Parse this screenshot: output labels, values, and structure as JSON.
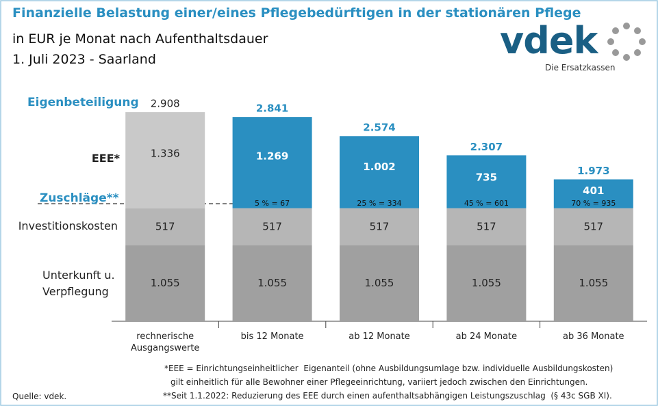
{
  "title": "Finanzielle Belastung einer/eines Pflegebedürftigen in der stationären Pflege",
  "subtitle": "in EUR je Monat nach Aufenthaltsdauer",
  "date": "1. Juli 2023 - Saarland",
  "logo": {
    "name": "vdek",
    "tagline": "Die Ersatzkassen"
  },
  "chart_data": {
    "type": "stacked_bar",
    "categories": [
      "rechnerische Ausgangswerte",
      "bis 12 Monate",
      "ab 12 Monate",
      "ab 24 Monate",
      "ab 36 Monate"
    ],
    "series": [
      {
        "name": "Unterkunft u. Verpflegung",
        "color": "#a0a0a0",
        "values": [
          1055,
          1055,
          1055,
          1055,
          1055
        ],
        "value_labels": [
          "1.055",
          "1.055",
          "1.055",
          "1.055",
          "1.055"
        ]
      },
      {
        "name": "Investitionskosten",
        "color": "#b6b6b6",
        "values": [
          517,
          517,
          517,
          517,
          517
        ]
      },
      {
        "name": "EEE*",
        "colors": [
          "#c9c9c9",
          "#2a8fc1",
          "#2a8fc1",
          "#2a8fc1",
          "#2a8fc1"
        ],
        "values": [
          1336,
          1269,
          1002,
          735,
          401
        ],
        "value_labels": [
          "1.336",
          "1.269",
          "1.002",
          "735",
          "401"
        ]
      }
    ],
    "totals": {
      "name": "Eigenbeteiligung",
      "values": [
        2908,
        2841,
        2574,
        2307,
        1973
      ],
      "value_labels": [
        "2.908",
        "2.841",
        "2.574",
        "2.307",
        "1.973"
      ]
    },
    "surcharges": {
      "name": "Zuschläge**",
      "value_labels": [
        null,
        "5 % = 67",
        "25 % = 334",
        "45 % = 601",
        "70 % = 935"
      ]
    }
  },
  "footnotes": [
    "*EEE = Einrichtungseinheitlicher  Eigenanteil (ohne Ausbildungsumlage bzw. individuelle Ausbildungskosten)",
    "gilt einheitlich für alle Bewohner einer Pflegeeinrichtung, variiert jedoch zwischen den Einrichtungen.",
    "**Seit 1.1.2022: Reduzierung des EEE durch einen aufenthaltsabhängigen Leistungszuschlag  (§ 43c SGB XI)."
  ],
  "source": "Quelle: vdek."
}
